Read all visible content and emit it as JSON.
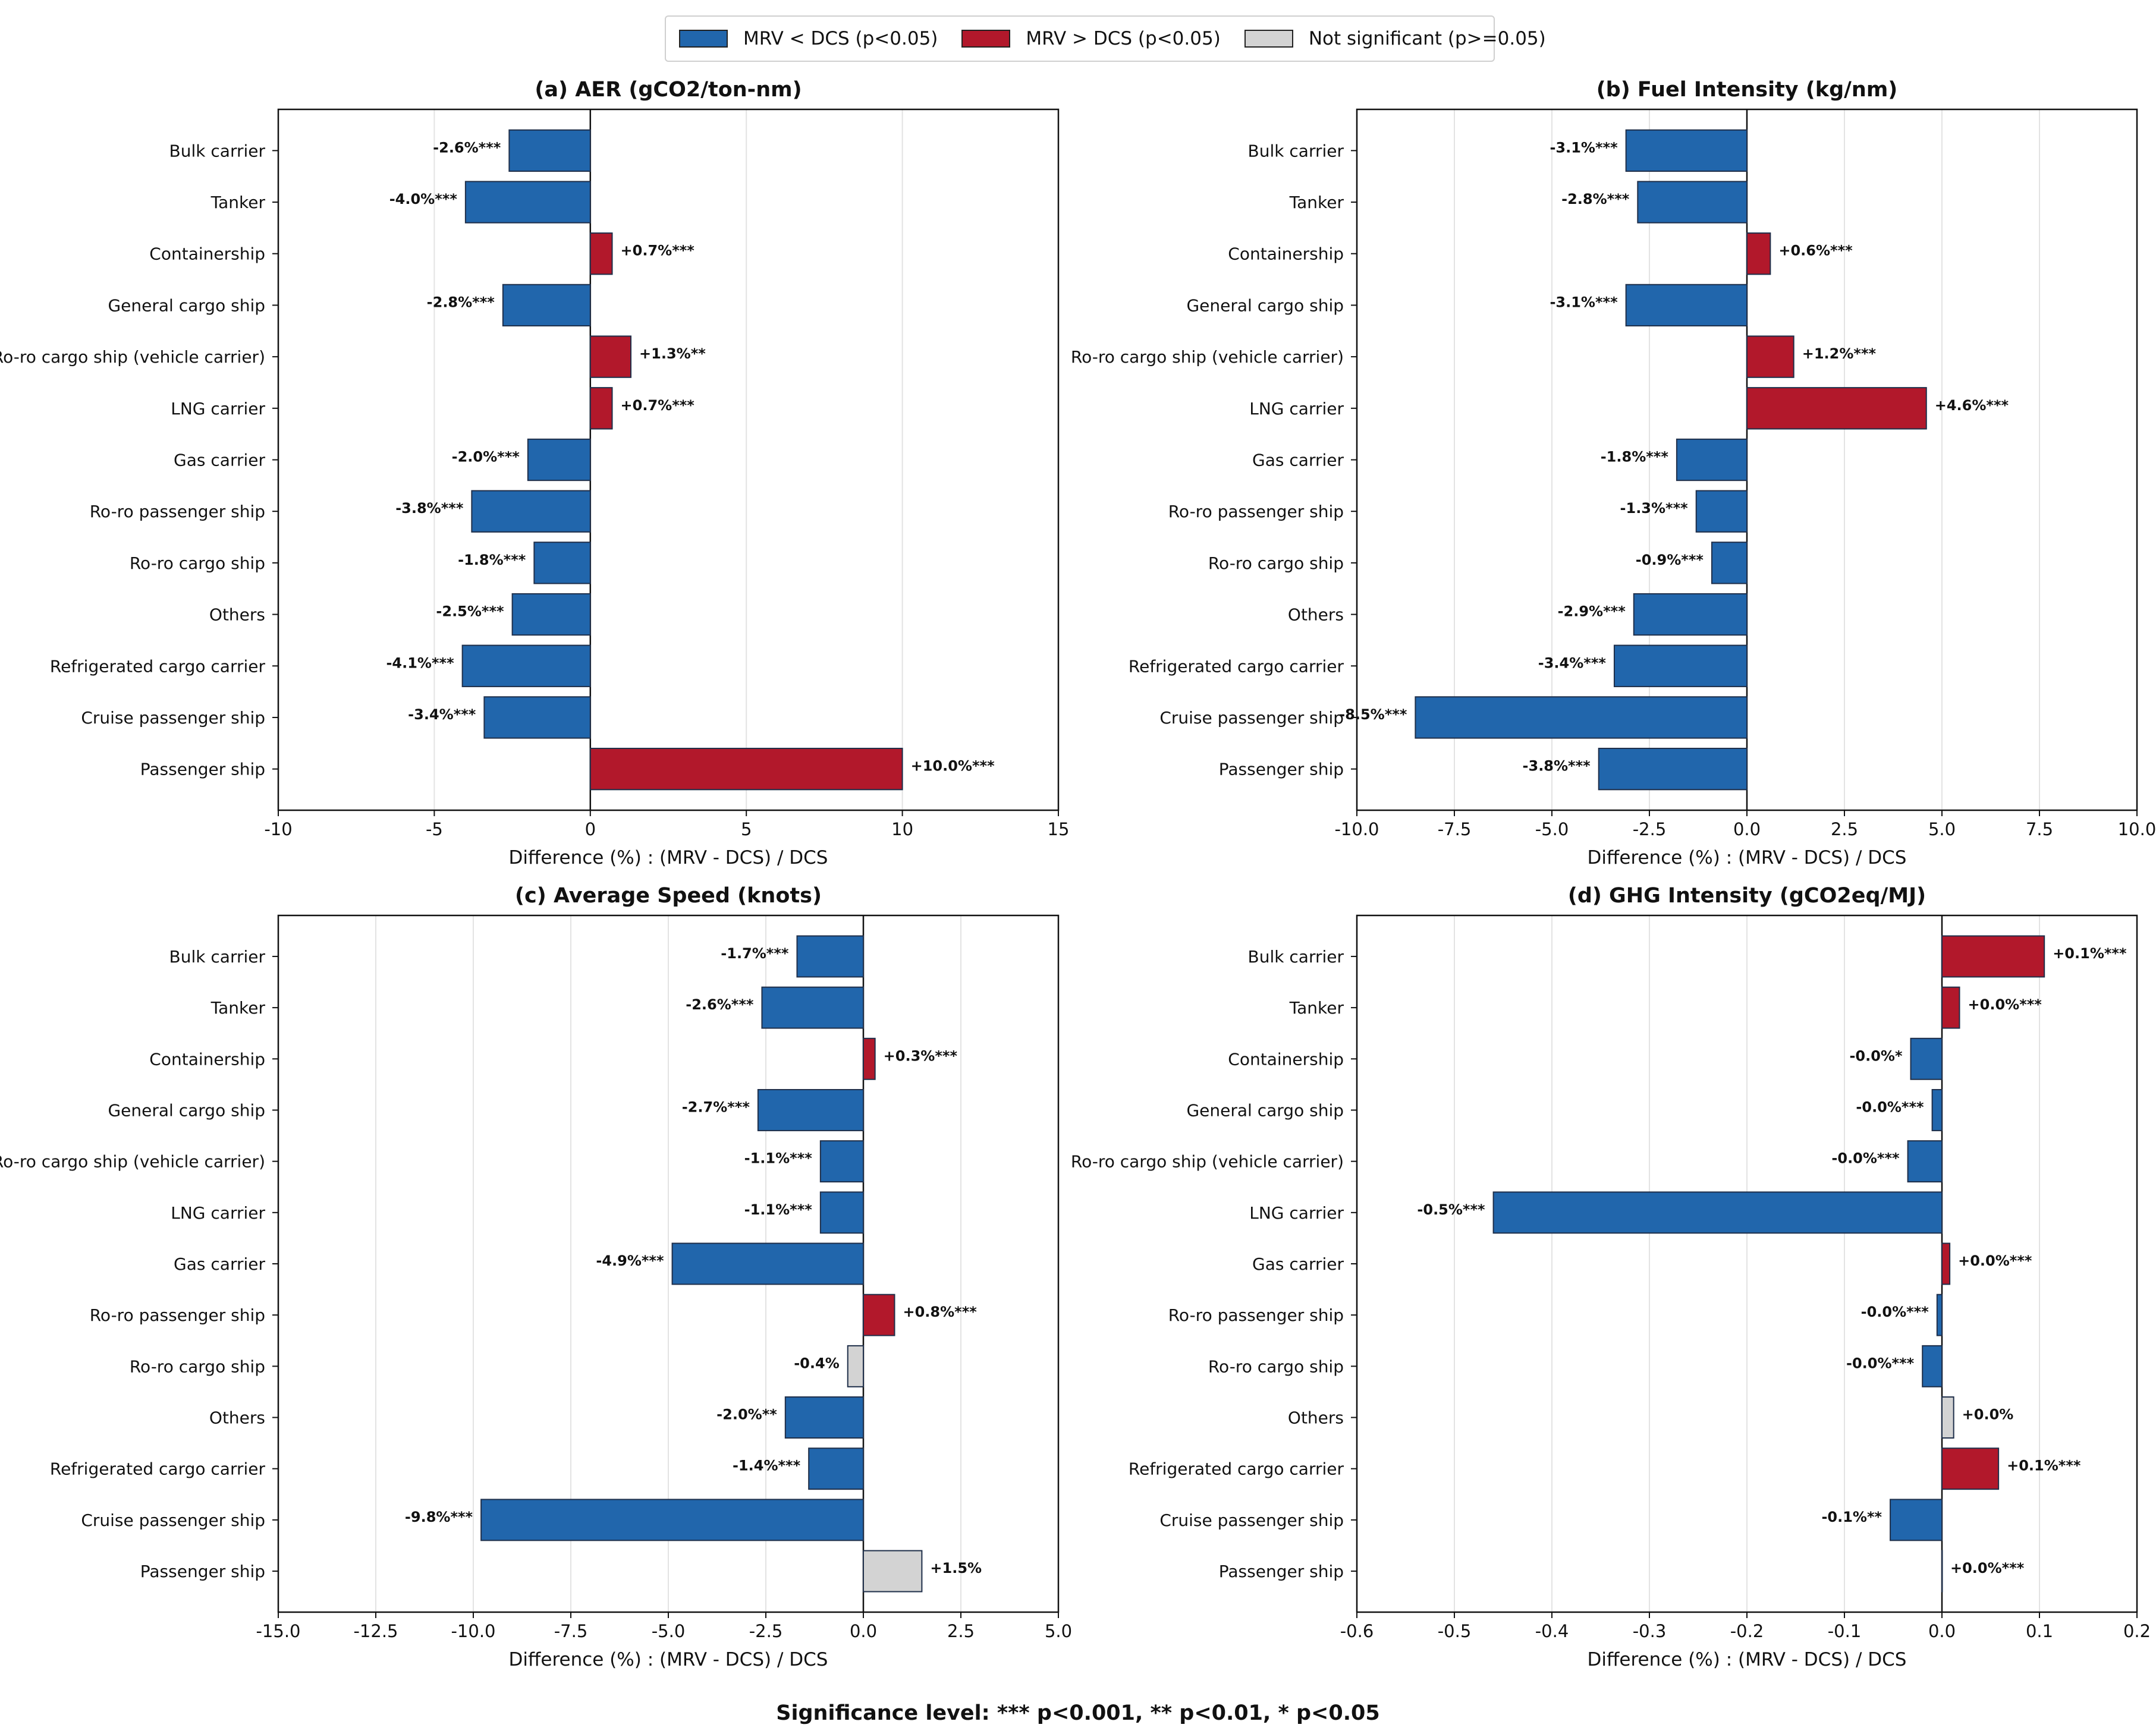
{
  "legend": {
    "items": [
      {
        "label": "MRV < DCS (p<0.05)",
        "color": "#2166ac"
      },
      {
        "label": "MRV > DCS (p<0.05)",
        "color": "#b2182b"
      },
      {
        "label": "Not significant (p>=0.05)",
        "color": "#d3d3d3"
      }
    ]
  },
  "footnote": "Significance level: *** p<0.001, ** p<0.01, * p<0.05",
  "colors": {
    "lower": "#2166ac",
    "higher": "#b2182b",
    "ns": "#d3d3d3"
  },
  "chart_data": [
    {
      "type": "bar",
      "orientation": "horizontal",
      "title": "(a) AER (gCO2/ton-nm)",
      "xlabel": "Difference (%) : (MRV - DCS) / DCS",
      "xlim": [
        -10,
        15
      ],
      "xticks": [
        -10,
        -5,
        0,
        5,
        10,
        15
      ],
      "xtick_labels": [
        "-10",
        "-5",
        "0",
        "5",
        "10",
        "15"
      ],
      "categories": [
        "Bulk carrier",
        "Tanker",
        "Containership",
        "General cargo ship",
        "Ro-ro cargo ship (vehicle carrier)",
        "LNG carrier",
        "Gas carrier",
        "Ro-ro passenger ship",
        "Ro-ro cargo ship",
        "Others",
        "Refrigerated cargo carrier",
        "Cruise passenger ship",
        "Passenger ship"
      ],
      "values": [
        -2.6,
        -4.0,
        0.7,
        -2.8,
        1.3,
        0.7,
        -2.0,
        -3.8,
        -1.8,
        -2.5,
        -4.1,
        -3.4,
        10.0
      ],
      "labels": [
        "-2.6%***",
        "-4.0%***",
        "+0.7%***",
        "-2.8%***",
        "+1.3%**",
        "+0.7%***",
        "-2.0%***",
        "-3.8%***",
        "-1.8%***",
        "-2.5%***",
        "-4.1%***",
        "-3.4%***",
        "+10.0%***"
      ],
      "significance": [
        "lower",
        "lower",
        "higher",
        "lower",
        "higher",
        "higher",
        "lower",
        "lower",
        "lower",
        "lower",
        "lower",
        "lower",
        "higher"
      ]
    },
    {
      "type": "bar",
      "orientation": "horizontal",
      "title": "(b) Fuel Intensity (kg/nm)",
      "xlabel": "Difference (%) : (MRV - DCS) / DCS",
      "xlim": [
        -10,
        10
      ],
      "xticks": [
        -10,
        -7.5,
        -5,
        -2.5,
        0,
        2.5,
        5,
        7.5,
        10
      ],
      "xtick_labels": [
        "-10.0",
        "-7.5",
        "-5.0",
        "-2.5",
        "0.0",
        "2.5",
        "5.0",
        "7.5",
        "10.0"
      ],
      "categories": [
        "Bulk carrier",
        "Tanker",
        "Containership",
        "General cargo ship",
        "Ro-ro cargo ship (vehicle carrier)",
        "LNG carrier",
        "Gas carrier",
        "Ro-ro passenger ship",
        "Ro-ro cargo ship",
        "Others",
        "Refrigerated cargo carrier",
        "Cruise passenger ship",
        "Passenger ship"
      ],
      "values": [
        -3.1,
        -2.8,
        0.6,
        -3.1,
        1.2,
        4.6,
        -1.8,
        -1.3,
        -0.9,
        -2.9,
        -3.4,
        -8.5,
        -3.8
      ],
      "labels": [
        "-3.1%***",
        "-2.8%***",
        "+0.6%***",
        "-3.1%***",
        "+1.2%***",
        "+4.6%***",
        "-1.8%***",
        "-1.3%***",
        "-0.9%***",
        "-2.9%***",
        "-3.4%***",
        "-8.5%***",
        "-3.8%***"
      ],
      "significance": [
        "lower",
        "lower",
        "higher",
        "lower",
        "higher",
        "higher",
        "lower",
        "lower",
        "lower",
        "lower",
        "lower",
        "lower",
        "lower"
      ]
    },
    {
      "type": "bar",
      "orientation": "horizontal",
      "title": "(c) Average Speed (knots)",
      "xlabel": "Difference (%) : (MRV - DCS) / DCS",
      "xlim": [
        -15,
        5
      ],
      "xticks": [
        -15,
        -12.5,
        -10,
        -7.5,
        -5,
        -2.5,
        0,
        2.5,
        5
      ],
      "xtick_labels": [
        "-15.0",
        "-12.5",
        "-10.0",
        "-7.5",
        "-5.0",
        "-2.5",
        "0.0",
        "2.5",
        "5.0"
      ],
      "categories": [
        "Bulk carrier",
        "Tanker",
        "Containership",
        "General cargo ship",
        "Ro-ro cargo ship (vehicle carrier)",
        "LNG carrier",
        "Gas carrier",
        "Ro-ro passenger ship",
        "Ro-ro cargo ship",
        "Others",
        "Refrigerated cargo carrier",
        "Cruise passenger ship",
        "Passenger ship"
      ],
      "values": [
        -1.7,
        -2.6,
        0.3,
        -2.7,
        -1.1,
        -1.1,
        -4.9,
        0.8,
        -0.4,
        -2.0,
        -1.4,
        -9.8,
        1.5
      ],
      "labels": [
        "-1.7%***",
        "-2.6%***",
        "+0.3%***",
        "-2.7%***",
        "-1.1%***",
        "-1.1%***",
        "-4.9%***",
        "+0.8%***",
        "-0.4%",
        "-2.0%**",
        "-1.4%***",
        "-9.8%***",
        "+1.5%"
      ],
      "significance": [
        "lower",
        "lower",
        "higher",
        "lower",
        "lower",
        "lower",
        "lower",
        "higher",
        "ns",
        "lower",
        "lower",
        "lower",
        "ns"
      ]
    },
    {
      "type": "bar",
      "orientation": "horizontal",
      "title": "(d) GHG Intensity (gCO2eq/MJ)",
      "xlabel": "Difference (%) : (MRV - DCS) / DCS",
      "xlim": [
        -0.6,
        0.2
      ],
      "xticks": [
        -0.6,
        -0.5,
        -0.4,
        -0.3,
        -0.2,
        -0.1,
        0,
        0.1,
        0.2
      ],
      "xtick_labels": [
        "-0.6",
        "-0.5",
        "-0.4",
        "-0.3",
        "-0.2",
        "-0.1",
        "0.0",
        "0.1",
        "0.2"
      ],
      "categories": [
        "Bulk carrier",
        "Tanker",
        "Containership",
        "General cargo ship",
        "Ro-ro cargo ship (vehicle carrier)",
        "LNG carrier",
        "Gas carrier",
        "Ro-ro passenger ship",
        "Ro-ro cargo ship",
        "Others",
        "Refrigerated cargo carrier",
        "Cruise passenger ship",
        "Passenger ship"
      ],
      "values": [
        0.105,
        0.018,
        -0.032,
        -0.01,
        -0.035,
        -0.46,
        0.008,
        -0.005,
        -0.02,
        0.012,
        0.058,
        -0.053,
        0.0
      ],
      "labels": [
        "+0.1%***",
        "+0.0%***",
        "-0.0%*",
        "-0.0%***",
        "-0.0%***",
        "-0.5%***",
        "+0.0%***",
        "-0.0%***",
        "-0.0%***",
        "+0.0%",
        "+0.1%***",
        "-0.1%**",
        "+0.0%***"
      ],
      "significance": [
        "higher",
        "higher",
        "lower",
        "lower",
        "lower",
        "lower",
        "higher",
        "lower",
        "lower",
        "ns",
        "higher",
        "lower",
        "higher"
      ]
    }
  ]
}
